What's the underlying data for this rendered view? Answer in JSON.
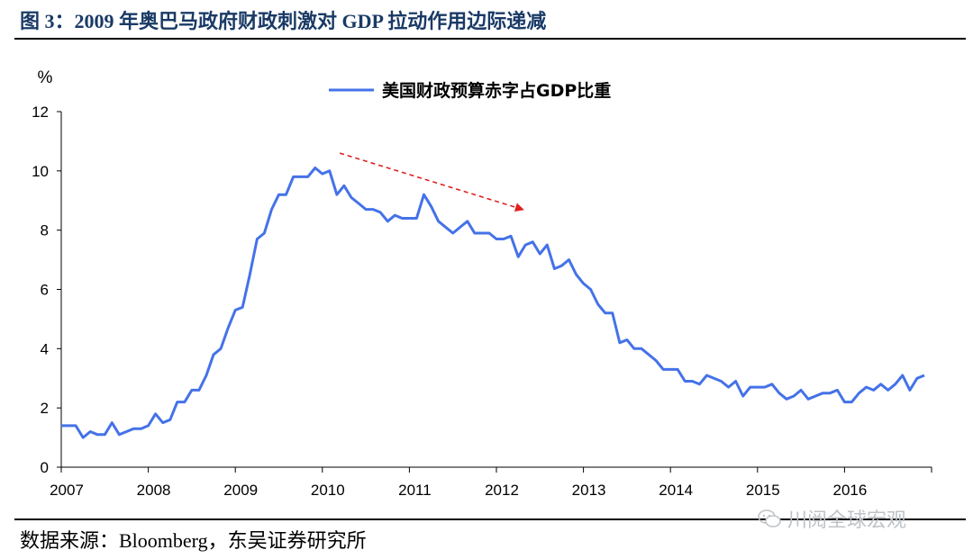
{
  "header": {
    "title": "图 3：2009 年奥巴马政府财政刺激对 GDP 拉动作用边际递减"
  },
  "footer": {
    "source": "数据来源：Bloomberg，东吴证券研究所",
    "watermark": "川阅全球宏观"
  },
  "colors": {
    "series": "#4472e8",
    "arrow": "#e02020",
    "title": "#1a3a66"
  },
  "chart_data": {
    "type": "line",
    "title": "",
    "unit_label": "%",
    "xlabel": "",
    "ylabel": "%",
    "ylim": [
      0,
      12
    ],
    "yticks": [
      "0",
      "2",
      "4",
      "6",
      "8",
      "10",
      "12"
    ],
    "xlim": [
      2007,
      2017
    ],
    "xticks": [
      "2007",
      "2008",
      "2009",
      "2010",
      "2011",
      "2012",
      "2013",
      "2014",
      "2015",
      "2016"
    ],
    "legend_position": "top-center",
    "series": [
      {
        "name": "美国财政预算赤字占GDP比重",
        "x": [
          2007.0,
          2007.083,
          2007.167,
          2007.25,
          2007.333,
          2007.417,
          2007.5,
          2007.583,
          2007.667,
          2007.75,
          2007.833,
          2007.917,
          2008.0,
          2008.083,
          2008.167,
          2008.25,
          2008.333,
          2008.417,
          2008.5,
          2008.583,
          2008.667,
          2008.75,
          2008.833,
          2008.917,
          2009.0,
          2009.083,
          2009.167,
          2009.25,
          2009.333,
          2009.417,
          2009.5,
          2009.583,
          2009.667,
          2009.75,
          2009.833,
          2009.917,
          2010.0,
          2010.083,
          2010.167,
          2010.25,
          2010.333,
          2010.417,
          2010.5,
          2010.583,
          2010.667,
          2010.75,
          2010.833,
          2010.917,
          2011.0,
          2011.083,
          2011.167,
          2011.25,
          2011.333,
          2011.417,
          2011.5,
          2011.583,
          2011.667,
          2011.75,
          2011.833,
          2011.917,
          2012.0,
          2012.083,
          2012.167,
          2012.25,
          2012.333,
          2012.417,
          2012.5,
          2012.583,
          2012.667,
          2012.75,
          2012.833,
          2012.917,
          2013.0,
          2013.083,
          2013.167,
          2013.25,
          2013.333,
          2013.417,
          2013.5,
          2013.583,
          2013.667,
          2013.75,
          2013.833,
          2013.917,
          2014.0,
          2014.083,
          2014.167,
          2014.25,
          2014.333,
          2014.417,
          2014.5,
          2014.583,
          2014.667,
          2014.75,
          2014.833,
          2014.917,
          2015.0,
          2015.083,
          2015.167,
          2015.25,
          2015.333,
          2015.417,
          2015.5,
          2015.583,
          2015.667,
          2015.75,
          2015.833,
          2015.917,
          2016.0,
          2016.083,
          2016.167,
          2016.25,
          2016.333,
          2016.417,
          2016.5,
          2016.583,
          2016.667,
          2016.75,
          2016.833,
          2016.917
        ],
        "values": [
          1.4,
          1.4,
          1.4,
          1.0,
          1.2,
          1.1,
          1.1,
          1.5,
          1.1,
          1.2,
          1.3,
          1.3,
          1.4,
          1.8,
          1.5,
          1.6,
          2.2,
          2.2,
          2.6,
          2.6,
          3.1,
          3.8,
          4.0,
          4.7,
          5.3,
          5.4,
          6.5,
          7.7,
          7.9,
          8.7,
          9.2,
          9.2,
          9.8,
          9.8,
          9.8,
          10.1,
          9.9,
          10.0,
          9.2,
          9.5,
          9.1,
          8.9,
          8.7,
          8.7,
          8.6,
          8.3,
          8.5,
          8.4,
          8.4,
          8.4,
          9.2,
          8.8,
          8.3,
          8.1,
          7.9,
          8.1,
          8.3,
          7.9,
          7.9,
          7.9,
          7.7,
          7.7,
          7.8,
          7.1,
          7.5,
          7.6,
          7.2,
          7.5,
          6.7,
          6.8,
          7.0,
          6.5,
          6.2,
          6.0,
          5.5,
          5.2,
          5.2,
          4.2,
          4.3,
          4.0,
          4.0,
          3.8,
          3.6,
          3.3,
          3.3,
          3.3,
          2.9,
          2.9,
          2.8,
          3.1,
          3.0,
          2.9,
          2.7,
          2.9,
          2.4,
          2.7,
          2.7,
          2.7,
          2.8,
          2.5,
          2.3,
          2.4,
          2.6,
          2.3,
          2.4,
          2.5,
          2.5,
          2.6,
          2.2,
          2.2,
          2.5,
          2.7,
          2.6,
          2.8,
          2.6,
          2.8,
          3.1,
          2.6,
          3.0,
          3.1
        ]
      }
    ],
    "annotations": [
      {
        "type": "dashed-arrow",
        "from": [
          2010.2,
          10.6
        ],
        "to": [
          2012.3,
          8.7
        ],
        "color": "#e02020"
      }
    ]
  }
}
